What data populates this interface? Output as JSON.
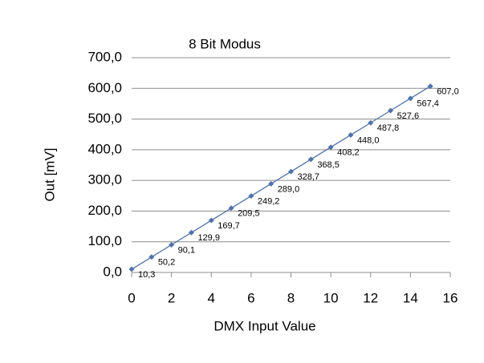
{
  "chart_data": {
    "type": "line",
    "title": "8 Bit Modus",
    "x_label": "DMX Input Value",
    "y_label": "Out [mV]",
    "x": [
      0,
      1,
      2,
      3,
      4,
      5,
      6,
      7,
      8,
      9,
      10,
      11,
      12,
      13,
      14,
      15
    ],
    "values": [
      10.3,
      50.2,
      90.1,
      129.9,
      169.7,
      209.5,
      249.2,
      289.0,
      328.7,
      368.5,
      408.2,
      448.0,
      487.8,
      527.6,
      567.4,
      607.0
    ],
    "value_labels": [
      "10,3",
      "50,2",
      "90,1",
      "129,9",
      "169,7",
      "209,5",
      "249,2",
      "289,0",
      "328,7",
      "368,5",
      "408,2",
      "448,0",
      "487,8",
      "527,6",
      "567,4",
      "607,0"
    ],
    "color": "#4f72a8",
    "xlim": [
      0,
      16
    ],
    "xticks": [
      0,
      2,
      4,
      6,
      8,
      10,
      12,
      14,
      16
    ],
    "ylim": [
      0,
      700
    ],
    "yticks": [
      {
        "value": 0,
        "label": "0,0"
      },
      {
        "value": 100,
        "label": "100,0"
      },
      {
        "value": 200,
        "label": "200,0"
      },
      {
        "value": 300,
        "label": "300,0"
      },
      {
        "value": 400,
        "label": "400,0"
      },
      {
        "value": 500,
        "label": "500,0"
      },
      {
        "value": 600,
        "label": "600,0"
      },
      {
        "value": 700,
        "label": "700,0"
      }
    ],
    "grid": true
  }
}
